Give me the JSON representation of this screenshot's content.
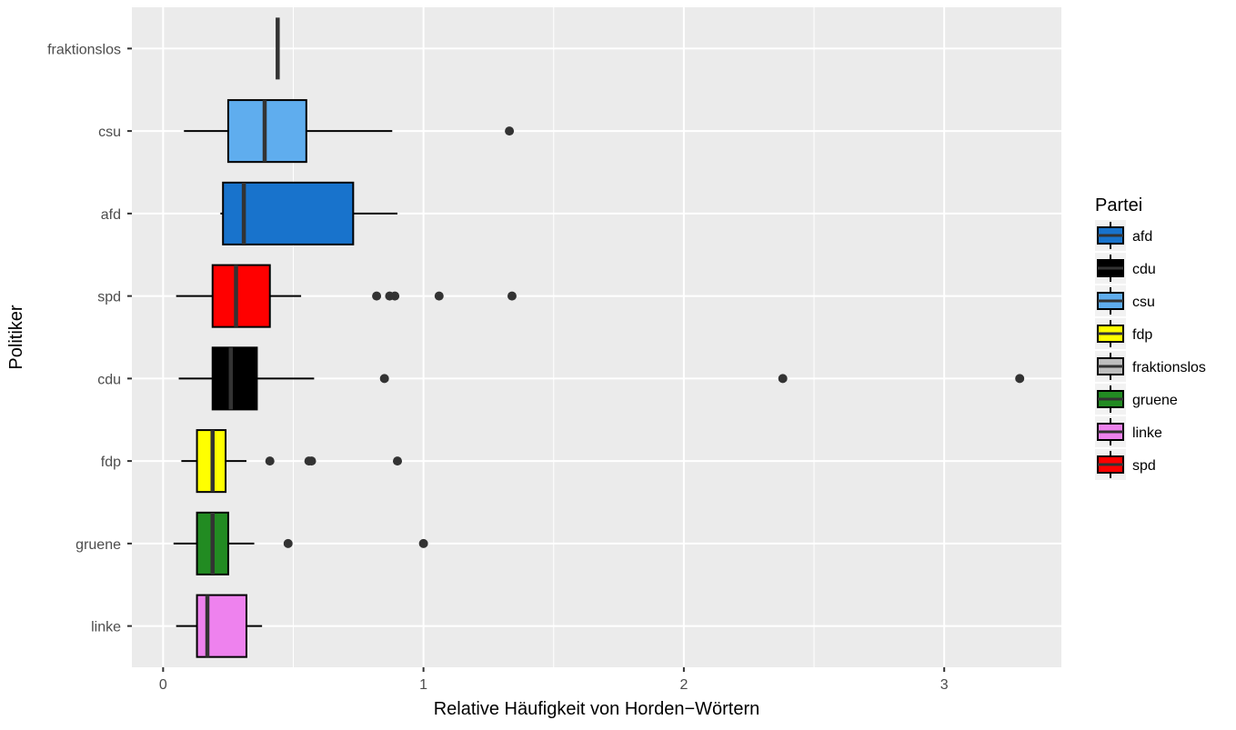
{
  "chart_data": {
    "type": "boxplot",
    "orientation": "horizontal",
    "xlabel": "Relative Häufigkeit von Horden−Wörtern",
    "ylabel": "Politiker",
    "xlim": [
      -0.12,
      3.45
    ],
    "x_ticks": [
      0,
      1,
      2,
      3
    ],
    "grid": true,
    "legend": {
      "title": "Partei",
      "placement": "right",
      "entries": [
        {
          "name": "afd",
          "color": "#1873cc"
        },
        {
          "name": "cdu",
          "color": "#000000"
        },
        {
          "name": "csu",
          "color": "#5fadee"
        },
        {
          "name": "fdp",
          "color": "#ffff00"
        },
        {
          "name": "fraktionslos",
          "color": "#bebebe"
        },
        {
          "name": "gruene",
          "color": "#228b22"
        },
        {
          "name": "linke",
          "color": "#ee82ee"
        },
        {
          "name": "spd",
          "color": "#ff0000"
        }
      ]
    },
    "categories": [
      "fraktionslos",
      "csu",
      "afd",
      "spd",
      "cdu",
      "fdp",
      "gruene",
      "linke"
    ],
    "boxes": [
      {
        "category": "fraktionslos",
        "color": "#bebebe",
        "lower_whisker": 0.44,
        "q1": 0.44,
        "median": 0.44,
        "q3": 0.44,
        "upper_whisker": 0.44,
        "outliers": []
      },
      {
        "category": "csu",
        "color": "#5fadee",
        "lower_whisker": 0.08,
        "q1": 0.25,
        "median": 0.39,
        "q3": 0.55,
        "upper_whisker": 0.88,
        "outliers": [
          1.33
        ]
      },
      {
        "category": "afd",
        "color": "#1873cc",
        "lower_whisker": 0.22,
        "q1": 0.23,
        "median": 0.31,
        "q3": 0.73,
        "upper_whisker": 0.9,
        "outliers": []
      },
      {
        "category": "spd",
        "color": "#ff0000",
        "lower_whisker": 0.05,
        "q1": 0.19,
        "median": 0.28,
        "q3": 0.41,
        "upper_whisker": 0.53,
        "outliers": [
          0.82,
          0.87,
          0.89,
          1.06,
          1.34
        ]
      },
      {
        "category": "cdu",
        "color": "#000000",
        "lower_whisker": 0.06,
        "q1": 0.19,
        "median": 0.26,
        "q3": 0.36,
        "upper_whisker": 0.58,
        "outliers": [
          0.85,
          2.38,
          3.29
        ]
      },
      {
        "category": "fdp",
        "color": "#ffff00",
        "lower_whisker": 0.07,
        "q1": 0.13,
        "median": 0.19,
        "q3": 0.24,
        "upper_whisker": 0.32,
        "outliers": [
          0.41,
          0.56,
          0.57,
          0.9
        ]
      },
      {
        "category": "gruene",
        "color": "#228b22",
        "lower_whisker": 0.04,
        "q1": 0.13,
        "median": 0.19,
        "q3": 0.25,
        "upper_whisker": 0.35,
        "outliers": [
          0.48,
          1.0
        ]
      },
      {
        "category": "linke",
        "color": "#ee82ee",
        "lower_whisker": 0.05,
        "q1": 0.13,
        "median": 0.17,
        "q3": 0.32,
        "upper_whisker": 0.38,
        "outliers": []
      }
    ]
  }
}
